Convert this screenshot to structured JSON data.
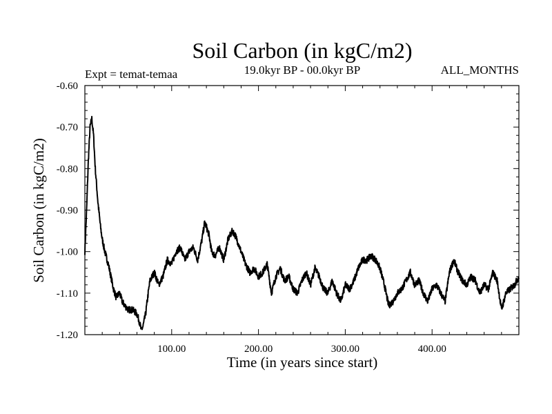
{
  "chart_data": {
    "type": "line",
    "title": "Soil Carbon (in kgC/m2)",
    "subtitle_left": "Expt = temat-temaa",
    "subtitle_center": "19.0kyr BP - 00.0kyr BP",
    "subtitle_right": "ALL_MONTHS",
    "xlabel": "Time (in years since start)",
    "ylabel": "Soil Carbon (in kgC/m2)",
    "xlim": [
      0,
      500
    ],
    "ylim": [
      -1.2,
      -0.6
    ],
    "xticks": [
      100,
      200,
      300,
      400
    ],
    "xtick_labels": [
      "100.00",
      "200.00",
      "300.00",
      "400.00"
    ],
    "yticks": [
      -0.6,
      -0.7,
      -0.8,
      -0.9,
      -1.0,
      -1.1,
      -1.2
    ],
    "ytick_labels": [
      "-0.60",
      "-0.70",
      "-0.80",
      "-0.90",
      "-1.00",
      "-1.10",
      "-1.20"
    ],
    "series": [
      {
        "name": "temat-temaa",
        "color": "#000000",
        "noise": 0.008,
        "x": [
          0,
          2,
          4,
          6,
          8,
          10,
          12,
          15,
          18,
          20,
          23,
          27,
          30,
          33,
          36,
          40,
          43,
          46,
          50,
          55,
          60,
          63,
          65,
          67,
          70,
          73,
          75,
          80,
          85,
          90,
          95,
          100,
          105,
          110,
          115,
          120,
          125,
          130,
          135,
          138,
          140,
          143,
          146,
          150,
          155,
          160,
          165,
          170,
          173,
          175,
          180,
          185,
          190,
          195,
          200,
          205,
          210,
          215,
          220,
          225,
          230,
          235,
          240,
          245,
          250,
          255,
          260,
          265,
          270,
          275,
          280,
          285,
          290,
          295,
          300,
          305,
          310,
          315,
          320,
          325,
          330,
          335,
          340,
          345,
          350,
          355,
          360,
          365,
          370,
          375,
          380,
          385,
          390,
          395,
          400,
          405,
          410,
          415,
          420,
          425,
          430,
          435,
          440,
          445,
          450,
          455,
          460,
          465,
          470,
          475,
          480,
          485,
          490,
          495,
          500
        ],
        "y": [
          -1.0,
          -0.9,
          -0.78,
          -0.7,
          -0.68,
          -0.72,
          -0.8,
          -0.88,
          -0.94,
          -0.97,
          -1.0,
          -1.03,
          -1.06,
          -1.09,
          -1.11,
          -1.1,
          -1.12,
          -1.13,
          -1.14,
          -1.14,
          -1.15,
          -1.17,
          -1.19,
          -1.18,
          -1.15,
          -1.1,
          -1.07,
          -1.05,
          -1.08,
          -1.06,
          -1.02,
          -1.03,
          -1.0,
          -0.99,
          -1.02,
          -1.0,
          -0.99,
          -1.02,
          -0.97,
          -0.93,
          -0.94,
          -0.96,
          -1.0,
          -1.01,
          -0.99,
          -1.02,
          -0.97,
          -0.95,
          -0.96,
          -0.97,
          -1.0,
          -1.03,
          -1.05,
          -1.04,
          -1.06,
          -1.05,
          -1.03,
          -1.1,
          -1.06,
          -1.04,
          -1.07,
          -1.06,
          -1.09,
          -1.1,
          -1.07,
          -1.05,
          -1.08,
          -1.04,
          -1.06,
          -1.09,
          -1.1,
          -1.07,
          -1.1,
          -1.12,
          -1.08,
          -1.09,
          -1.07,
          -1.04,
          -1.02,
          -1.02,
          -1.01,
          -1.02,
          -1.04,
          -1.08,
          -1.13,
          -1.12,
          -1.1,
          -1.09,
          -1.07,
          -1.05,
          -1.08,
          -1.07,
          -1.1,
          -1.12,
          -1.09,
          -1.08,
          -1.1,
          -1.12,
          -1.05,
          -1.02,
          -1.05,
          -1.07,
          -1.08,
          -1.06,
          -1.07,
          -1.1,
          -1.08,
          -1.09,
          -1.05,
          -1.07,
          -1.14,
          -1.1,
          -1.09,
          -1.08,
          -1.06
        ]
      }
    ]
  }
}
